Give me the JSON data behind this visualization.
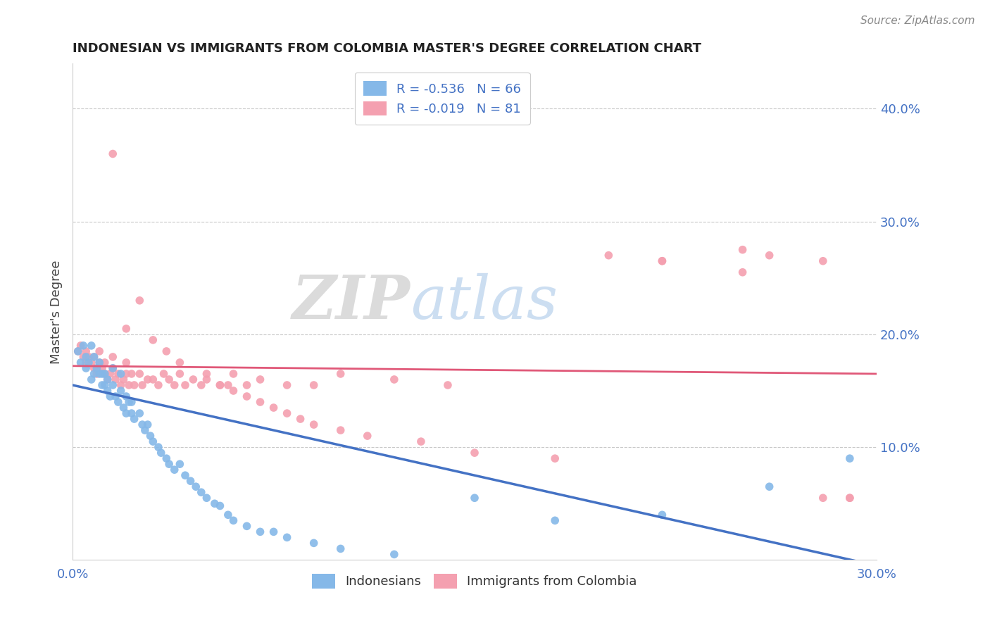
{
  "title": "INDONESIAN VS IMMIGRANTS FROM COLOMBIA MASTER'S DEGREE CORRELATION CHART",
  "source": "Source: ZipAtlas.com",
  "ylabel": "Master's Degree",
  "right_yticks": [
    10.0,
    20.0,
    30.0,
    40.0
  ],
  "xmin": 0.0,
  "xmax": 0.3,
  "ymin": 0.0,
  "ymax": 0.44,
  "watermark_zip": "ZIP",
  "watermark_atlas": "atlas",
  "legend_text1": "R = -0.536   N = 66",
  "legend_text2": "R = -0.019   N = 81",
  "series1_label": "Indonesians",
  "series2_label": "Immigrants from Colombia",
  "series1_color": "#85b8e8",
  "series2_color": "#f4a0b0",
  "series1_line_color": "#4472c4",
  "series2_line_color": "#e05878",
  "title_color": "#222222",
  "axis_label_color": "#4472c4",
  "source_color": "#888888",
  "legend_text_color": "#4472c4",
  "trend1_x0": 0.0,
  "trend1_x1": 0.3,
  "trend1_y0": 0.155,
  "trend1_y1": -0.005,
  "trend2_x0": 0.0,
  "trend2_x1": 0.3,
  "trend2_y0": 0.172,
  "trend2_y1": 0.165,
  "indonesians_x": [
    0.002,
    0.003,
    0.004,
    0.005,
    0.005,
    0.006,
    0.007,
    0.007,
    0.008,
    0.008,
    0.009,
    0.01,
    0.01,
    0.011,
    0.011,
    0.012,
    0.012,
    0.013,
    0.013,
    0.014,
    0.015,
    0.015,
    0.016,
    0.017,
    0.018,
    0.018,
    0.019,
    0.02,
    0.02,
    0.021,
    0.022,
    0.022,
    0.023,
    0.025,
    0.026,
    0.027,
    0.028,
    0.029,
    0.03,
    0.032,
    0.033,
    0.035,
    0.036,
    0.038,
    0.04,
    0.042,
    0.044,
    0.046,
    0.048,
    0.05,
    0.053,
    0.055,
    0.058,
    0.06,
    0.065,
    0.07,
    0.075,
    0.08,
    0.09,
    0.1,
    0.12,
    0.15,
    0.18,
    0.22,
    0.26,
    0.29
  ],
  "indonesians_y": [
    0.185,
    0.175,
    0.19,
    0.17,
    0.18,
    0.175,
    0.16,
    0.19,
    0.165,
    0.18,
    0.17,
    0.165,
    0.175,
    0.155,
    0.165,
    0.155,
    0.165,
    0.15,
    0.16,
    0.145,
    0.17,
    0.155,
    0.145,
    0.14,
    0.15,
    0.165,
    0.135,
    0.13,
    0.145,
    0.14,
    0.13,
    0.14,
    0.125,
    0.13,
    0.12,
    0.115,
    0.12,
    0.11,
    0.105,
    0.1,
    0.095,
    0.09,
    0.085,
    0.08,
    0.085,
    0.075,
    0.07,
    0.065,
    0.06,
    0.055,
    0.05,
    0.048,
    0.04,
    0.035,
    0.03,
    0.025,
    0.025,
    0.02,
    0.015,
    0.01,
    0.005,
    0.055,
    0.035,
    0.04,
    0.065,
    0.09
  ],
  "colombia_x": [
    0.002,
    0.003,
    0.004,
    0.005,
    0.005,
    0.006,
    0.007,
    0.008,
    0.008,
    0.009,
    0.01,
    0.01,
    0.011,
    0.012,
    0.012,
    0.013,
    0.014,
    0.015,
    0.015,
    0.016,
    0.017,
    0.018,
    0.019,
    0.02,
    0.02,
    0.021,
    0.022,
    0.023,
    0.025,
    0.026,
    0.028,
    0.03,
    0.032,
    0.034,
    0.036,
    0.038,
    0.04,
    0.042,
    0.045,
    0.048,
    0.05,
    0.055,
    0.058,
    0.06,
    0.065,
    0.07,
    0.08,
    0.09,
    0.1,
    0.12,
    0.14,
    0.2,
    0.22,
    0.25,
    0.28,
    0.29,
    0.015,
    0.02,
    0.025,
    0.03,
    0.035,
    0.04,
    0.05,
    0.055,
    0.06,
    0.065,
    0.07,
    0.075,
    0.08,
    0.085,
    0.09,
    0.1,
    0.11,
    0.13,
    0.15,
    0.18,
    0.22,
    0.25,
    0.26,
    0.28,
    0.29
  ],
  "colombia_y": [
    0.185,
    0.19,
    0.18,
    0.175,
    0.185,
    0.18,
    0.175,
    0.17,
    0.18,
    0.165,
    0.175,
    0.185,
    0.17,
    0.165,
    0.175,
    0.16,
    0.165,
    0.17,
    0.18,
    0.16,
    0.165,
    0.155,
    0.16,
    0.165,
    0.175,
    0.155,
    0.165,
    0.155,
    0.165,
    0.155,
    0.16,
    0.16,
    0.155,
    0.165,
    0.16,
    0.155,
    0.165,
    0.155,
    0.16,
    0.155,
    0.16,
    0.155,
    0.155,
    0.165,
    0.155,
    0.16,
    0.155,
    0.155,
    0.165,
    0.16,
    0.155,
    0.27,
    0.265,
    0.275,
    0.265,
    0.055,
    0.36,
    0.205,
    0.23,
    0.195,
    0.185,
    0.175,
    0.165,
    0.155,
    0.15,
    0.145,
    0.14,
    0.135,
    0.13,
    0.125,
    0.12,
    0.115,
    0.11,
    0.105,
    0.095,
    0.09,
    0.265,
    0.255,
    0.27,
    0.055,
    0.055
  ]
}
